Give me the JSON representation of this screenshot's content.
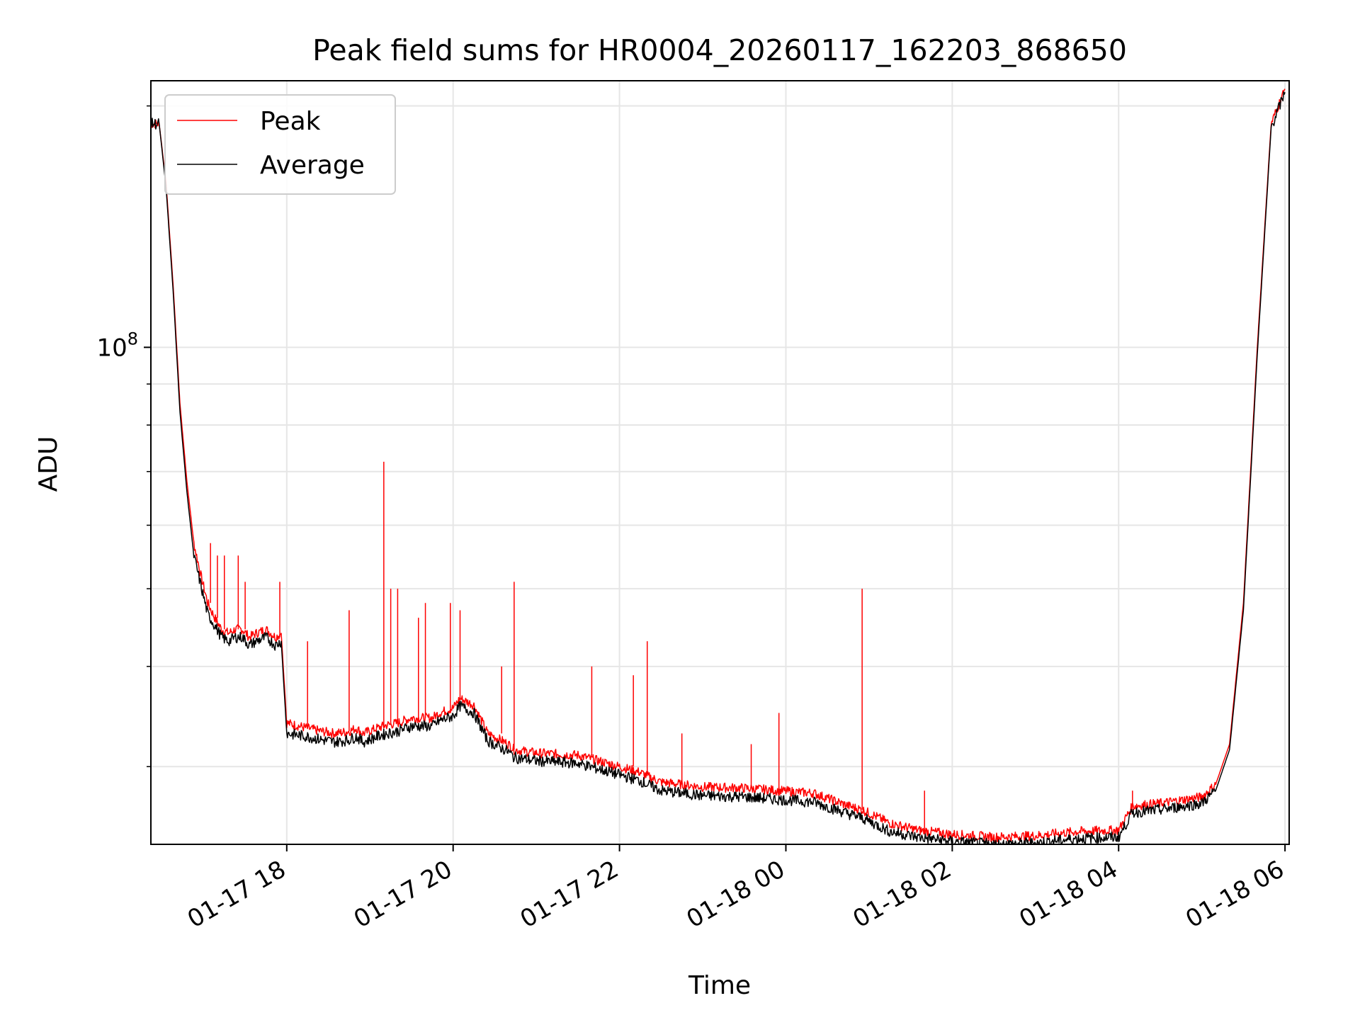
{
  "chart_data": {
    "type": "line",
    "title": "Peak field sums for HR0004_20260117_162203_868650",
    "xlabel": "Time",
    "ylabel": "ADU",
    "yscale": "log",
    "ylim": [
      24000000,
      215000000
    ],
    "xlim": [
      "2026-01-17T16:22",
      "2026-01-18T06:03"
    ],
    "x_ticks": [
      "01-17 18",
      "01-17 20",
      "01-17 22",
      "01-18 00",
      "01-18 02",
      "01-18 04",
      "01-18 06"
    ],
    "y_ticks": [
      "10^8"
    ],
    "grid": true,
    "legend": "top-left",
    "series": [
      {
        "name": "Peak",
        "color": "#ff0000",
        "x": [
          "2026-01-17T16:22",
          "2026-01-17T16:28",
          "2026-01-17T16:33",
          "2026-01-17T16:38",
          "2026-01-17T16:43",
          "2026-01-17T16:48",
          "2026-01-17T16:53",
          "2026-01-17T16:58",
          "2026-01-17T17:03",
          "2026-01-17T17:08",
          "2026-01-17T17:13",
          "2026-01-17T17:18",
          "2026-01-17T17:23",
          "2026-01-17T17:28",
          "2026-01-17T17:33",
          "2026-01-17T17:38",
          "2026-01-17T17:45",
          "2026-01-17T17:52",
          "2026-01-17T17:56",
          "2026-01-17T18:00",
          "2026-01-17T18:15",
          "2026-01-17T18:25",
          "2026-01-17T18:35",
          "2026-01-17T18:45",
          "2026-01-17T18:50",
          "2026-01-17T18:55",
          "2026-01-17T19:05",
          "2026-01-17T19:12",
          "2026-01-17T19:20",
          "2026-01-17T19:30",
          "2026-01-17T19:45",
          "2026-01-17T19:50",
          "2026-01-17T20:00",
          "2026-01-17T20:05",
          "2026-01-17T20:15",
          "2026-01-17T20:25",
          "2026-01-17T20:40",
          "2026-01-17T20:44",
          "2026-01-17T21:00",
          "2026-01-17T21:30",
          "2026-01-17T21:45",
          "2026-01-17T22:00",
          "2026-01-17T22:15",
          "2026-01-17T22:20",
          "2026-01-17T22:30",
          "2026-01-17T22:45",
          "2026-01-17T23:00",
          "2026-01-17T23:30",
          "2026-01-17T23:55",
          "2026-01-18T00:20",
          "2026-01-18T00:45",
          "2026-01-18T00:55",
          "2026-01-18T01:05",
          "2026-01-18T01:15",
          "2026-01-18T01:35",
          "2026-01-18T02:00",
          "2026-01-18T02:30",
          "2026-01-18T03:00",
          "2026-01-18T03:30",
          "2026-01-18T04:00",
          "2026-01-18T04:10",
          "2026-01-18T04:30",
          "2026-01-18T05:00",
          "2026-01-18T05:10",
          "2026-01-18T05:20",
          "2026-01-18T05:30",
          "2026-01-18T05:40",
          "2026-01-18T05:50",
          "2026-01-18T06:00"
        ],
        "y": [
          190000000,
          190000000,
          160000000,
          120000000,
          85000000,
          68000000,
          57000000,
          52000000,
          48000000,
          46000000,
          44500000,
          44000000,
          44500000,
          44500000,
          43500000,
          44000000,
          44500000,
          43500000,
          44000000,
          34000000,
          33500000,
          33200000,
          33000000,
          33200000,
          33500000,
          33000000,
          33500000,
          33800000,
          34000000,
          34500000,
          34500000,
          35000000,
          35500000,
          36500000,
          35800000,
          33000000,
          32000000,
          31500000,
          31200000,
          31000000,
          30500000,
          30000000,
          29500000,
          29200000,
          28700000,
          28500000,
          28300000,
          28200000,
          28000000,
          27800000,
          26800000,
          26500000,
          26000000,
          25500000,
          25000000,
          24700000,
          24500000,
          24600000,
          24900000,
          25000000,
          26800000,
          27000000,
          27500000,
          28500000,
          32000000,
          48000000,
          100000000,
          190000000,
          210000000
        ],
        "spikes": [
          {
            "x": "2026-01-17T17:05",
            "y": 57000000
          },
          {
            "x": "2026-01-17T17:10",
            "y": 55000000
          },
          {
            "x": "2026-01-17T17:15",
            "y": 55000000
          },
          {
            "x": "2026-01-17T17:25",
            "y": 55000000
          },
          {
            "x": "2026-01-17T17:30",
            "y": 51000000
          },
          {
            "x": "2026-01-17T17:55",
            "y": 51000000
          },
          {
            "x": "2026-01-17T18:15",
            "y": 43000000
          },
          {
            "x": "2026-01-17T18:45",
            "y": 47000000
          },
          {
            "x": "2026-01-17T19:10",
            "y": 72000000
          },
          {
            "x": "2026-01-17T19:15",
            "y": 50000000
          },
          {
            "x": "2026-01-17T19:20",
            "y": 50000000
          },
          {
            "x": "2026-01-17T19:35",
            "y": 46000000
          },
          {
            "x": "2026-01-17T19:40",
            "y": 48000000
          },
          {
            "x": "2026-01-17T19:58",
            "y": 48000000
          },
          {
            "x": "2026-01-17T20:05",
            "y": 47000000
          },
          {
            "x": "2026-01-17T20:35",
            "y": 40000000
          },
          {
            "x": "2026-01-17T20:44",
            "y": 51000000
          },
          {
            "x": "2026-01-17T21:40",
            "y": 40000000
          },
          {
            "x": "2026-01-17T22:10",
            "y": 39000000
          },
          {
            "x": "2026-01-17T22:20",
            "y": 43000000
          },
          {
            "x": "2026-01-17T22:45",
            "y": 33000000
          },
          {
            "x": "2026-01-17T23:35",
            "y": 32000000
          },
          {
            "x": "2026-01-17T23:55",
            "y": 35000000
          },
          {
            "x": "2026-01-18T00:55",
            "y": 50000000
          },
          {
            "x": "2026-01-18T01:40",
            "y": 28000000
          },
          {
            "x": "2026-01-18T04:10",
            "y": 28000000
          }
        ]
      },
      {
        "name": "Average",
        "color": "#000000",
        "x": [
          "2026-01-17T16:22",
          "2026-01-17T16:28",
          "2026-01-17T16:33",
          "2026-01-17T16:38",
          "2026-01-17T16:43",
          "2026-01-17T16:48",
          "2026-01-17T16:53",
          "2026-01-17T16:58",
          "2026-01-17T17:03",
          "2026-01-17T17:08",
          "2026-01-17T17:13",
          "2026-01-17T17:18",
          "2026-01-17T17:23",
          "2026-01-17T17:28",
          "2026-01-17T17:33",
          "2026-01-17T17:38",
          "2026-01-17T17:45",
          "2026-01-17T17:52",
          "2026-01-17T17:56",
          "2026-01-17T18:00",
          "2026-01-17T18:15",
          "2026-01-17T18:25",
          "2026-01-17T18:35",
          "2026-01-17T18:45",
          "2026-01-17T18:50",
          "2026-01-17T18:55",
          "2026-01-17T19:05",
          "2026-01-17T19:12",
          "2026-01-17T19:20",
          "2026-01-17T19:30",
          "2026-01-17T19:45",
          "2026-01-17T19:50",
          "2026-01-17T20:00",
          "2026-01-17T20:05",
          "2026-01-17T20:15",
          "2026-01-17T20:25",
          "2026-01-17T20:40",
          "2026-01-17T20:44",
          "2026-01-17T21:00",
          "2026-01-17T21:30",
          "2026-01-17T21:45",
          "2026-01-17T22:00",
          "2026-01-17T22:15",
          "2026-01-17T22:20",
          "2026-01-17T22:30",
          "2026-01-17T22:45",
          "2026-01-17T23:00",
          "2026-01-17T23:30",
          "2026-01-17T23:55",
          "2026-01-18T00:20",
          "2026-01-18T00:45",
          "2026-01-18T00:55",
          "2026-01-18T01:05",
          "2026-01-18T01:15",
          "2026-01-18T01:35",
          "2026-01-18T02:00",
          "2026-01-18T02:30",
          "2026-01-18T03:00",
          "2026-01-18T03:30",
          "2026-01-18T04:00",
          "2026-01-18T04:10",
          "2026-01-18T04:30",
          "2026-01-18T05:00",
          "2026-01-18T05:10",
          "2026-01-18T05:20",
          "2026-01-18T05:30",
          "2026-01-18T05:40",
          "2026-01-18T05:50",
          "2026-01-18T06:00"
        ],
        "y": [
          190000000,
          190000000,
          158000000,
          118000000,
          83000000,
          66000000,
          55000000,
          50500000,
          46500000,
          45000000,
          43500000,
          43000000,
          43500000,
          43500000,
          42500000,
          43000000,
          43500000,
          42500000,
          43000000,
          33000000,
          32700000,
          32400000,
          32200000,
          32400000,
          32700000,
          32200000,
          32700000,
          33000000,
          33200000,
          33700000,
          33700000,
          34200000,
          34700000,
          35700000,
          35000000,
          32300000,
          31300000,
          30800000,
          30500000,
          30300000,
          29800000,
          29300000,
          28800000,
          28500000,
          28000000,
          27800000,
          27600000,
          27500000,
          27300000,
          27100000,
          26200000,
          25900000,
          25400000,
          24900000,
          24500000,
          24200000,
          24000000,
          24100000,
          24400000,
          24500000,
          26300000,
          26500000,
          27000000,
          28000000,
          31500000,
          47000000,
          98000000,
          188000000,
          208000000
        ]
      }
    ]
  }
}
